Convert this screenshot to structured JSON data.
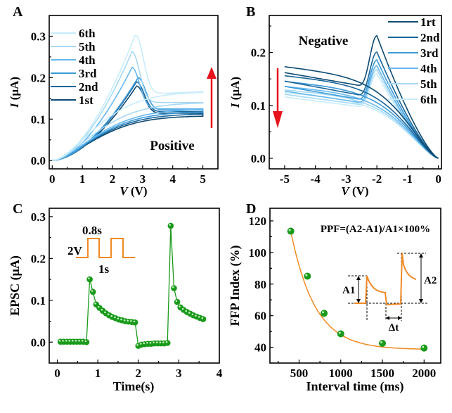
{
  "colors": {
    "series6": [
      "#0d4a73",
      "#1a6699",
      "#3a9ad9",
      "#66b8ee",
      "#a6d9f5",
      "#c8ecfb"
    ],
    "red_arrow": "#e8141c",
    "green": "#1a9a1a",
    "orange": "#f08a24"
  },
  "chart_data": [
    {
      "panel": "A",
      "type": "line",
      "xlabel_italic": "V",
      "xlabel_unit": " (V)",
      "ylabel_italic": "I",
      "ylabel_unit": " (μA)",
      "xlim": [
        -0.1,
        5.5
      ],
      "ylim": [
        -0.02,
        0.35
      ],
      "xticks": [
        0,
        1,
        2,
        3,
        4,
        5
      ],
      "yticks": [
        0.0,
        0.1,
        0.2,
        0.3
      ],
      "ytick_labels": [
        "0.0",
        "0.1",
        "0.2",
        "0.3"
      ],
      "annotation": "Positive",
      "arrow_direction": "up",
      "legend_position": "top-left",
      "series": [
        {
          "name": "6th",
          "peak_v": 2.78,
          "peak_i": 0.308,
          "end_upper": 0.166,
          "end_lower": 0.166,
          "mid_lower": 0.135
        },
        {
          "name": "5th",
          "peak_v": 2.65,
          "peak_i": 0.263,
          "end_upper": 0.14,
          "end_lower": 0.14,
          "mid_lower": 0.112
        },
        {
          "name": "4th",
          "peak_v": 2.65,
          "peak_i": 0.225,
          "end_upper": 0.125,
          "end_lower": 0.124,
          "mid_lower": 0.1
        },
        {
          "name": "3rd",
          "peak_v": 2.85,
          "peak_i": 0.2,
          "end_upper": 0.122,
          "end_lower": 0.118,
          "mid_lower": 0.095
        },
        {
          "name": "2nd",
          "peak_v": 2.8,
          "peak_i": 0.19,
          "end_upper": 0.118,
          "end_lower": 0.113,
          "mid_lower": 0.09
        },
        {
          "name": "1st",
          "peak_v": 2.8,
          "peak_i": 0.18,
          "end_upper": 0.114,
          "end_lower": 0.108,
          "mid_lower": 0.086
        }
      ]
    },
    {
      "panel": "B",
      "type": "line",
      "xlabel_italic": "V",
      "xlabel_unit": " (V)",
      "ylabel_italic": "I",
      "ylabel_unit": " (μA)",
      "xlim": [
        -5.5,
        0.1
      ],
      "ylim": [
        -0.02,
        0.27
      ],
      "xticks": [
        -5,
        -4,
        -3,
        -2,
        -1,
        0
      ],
      "yticks": [
        0.0,
        0.1,
        0.2
      ],
      "ytick_labels": [
        "0.0",
        "0.1",
        "0.2"
      ],
      "annotation": "Negative",
      "arrow_direction": "down",
      "legend_position": "top-right",
      "series": [
        {
          "name": "1rt",
          "peak_i": 0.232,
          "start": 0.162,
          "valley": 0.138,
          "mid_lower": 0.098
        },
        {
          "name": "2nd",
          "peak_i": 0.201,
          "start": 0.146,
          "valley": 0.12,
          "mid_lower": 0.088
        },
        {
          "name": "3rd",
          "peak_i": 0.186,
          "start": 0.136,
          "valley": 0.112,
          "mid_lower": 0.082
        },
        {
          "name": "4th",
          "peak_i": 0.175,
          "start": 0.127,
          "valley": 0.106,
          "mid_lower": 0.078
        },
        {
          "name": "5th",
          "peak_i": 0.168,
          "start": 0.121,
          "valley": 0.102,
          "mid_lower": 0.075
        },
        {
          "name": "6th",
          "peak_i": 0.16,
          "start": 0.116,
          "valley": 0.098,
          "mid_lower": 0.072
        }
      ]
    },
    {
      "panel": "C",
      "type": "scatter",
      "xlabel": "Time(s)",
      "ylabel": "EPSC (μA)",
      "xlim": [
        -0.2,
        4
      ],
      "ylim": [
        -0.05,
        0.32
      ],
      "xticks": [
        0,
        1,
        2,
        3,
        4
      ],
      "yticks": [
        0.0,
        0.1,
        0.2,
        0.3
      ],
      "ytick_labels": [
        "0.0",
        "0.1",
        "0.2",
        "0.3"
      ],
      "inset": {
        "voltage_label": "2V",
        "width_label": "0.8s",
        "gap_label": "1s"
      },
      "x": [
        0.08,
        0.16,
        0.24,
        0.32,
        0.4,
        0.48,
        0.56,
        0.64,
        0.72,
        0.8,
        0.88,
        0.96,
        1.04,
        1.12,
        1.2,
        1.28,
        1.36,
        1.44,
        1.52,
        1.6,
        1.68,
        1.76,
        1.84,
        1.92,
        2.0,
        2.08,
        2.16,
        2.24,
        2.32,
        2.4,
        2.48,
        2.56,
        2.64,
        2.72,
        2.8,
        2.88,
        2.96,
        3.04,
        3.12,
        3.2,
        3.28,
        3.36,
        3.44,
        3.52,
        3.6
      ],
      "y": [
        0.001,
        0.001,
        0.001,
        0.001,
        0.001,
        0.001,
        0.001,
        0.001,
        0.0,
        0.15,
        0.12,
        0.09,
        0.082,
        0.075,
        0.069,
        0.064,
        0.06,
        0.057,
        0.054,
        0.052,
        0.05,
        0.049,
        0.048,
        0.047,
        -0.009,
        -0.006,
        -0.005,
        -0.004,
        -0.004,
        -0.003,
        -0.003,
        -0.003,
        -0.003,
        -0.002,
        0.278,
        0.129,
        0.096,
        0.083,
        0.077,
        0.072,
        0.068,
        0.064,
        0.061,
        0.058,
        0.055
      ],
      "x_adj_note": "points at spacing ~0.065s"
    },
    {
      "panel": "D",
      "type": "scatter",
      "xlabel": "Interval time (ms)",
      "ylabel": "FFP Index (%)",
      "xlim": [
        150,
        2200
      ],
      "ylim": [
        30,
        128
      ],
      "xticks": [
        500,
        1000,
        1500,
        2000
      ],
      "yticks": [
        40,
        60,
        80,
        100,
        120
      ],
      "x": [
        400,
        600,
        800,
        1000,
        1500,
        2000
      ],
      "y": [
        113.5,
        85,
        61.5,
        48.5,
        42.5,
        39.5
      ],
      "fit": {
        "type": "exponential",
        "y0": 38.5,
        "A": 75,
        "x0": 400,
        "tau": 290
      },
      "formula": "PPF=(A2-A1)/A1×100%",
      "inset_labels": {
        "a1": "A1",
        "a2": "A2",
        "dt": "Δt"
      }
    }
  ],
  "panel_labels": [
    "A",
    "B",
    "C",
    "D"
  ]
}
